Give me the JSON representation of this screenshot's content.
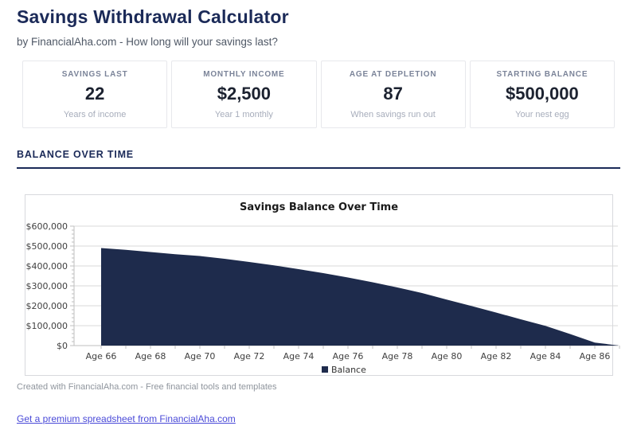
{
  "page": {
    "title": "Savings Withdrawal Calculator",
    "subtitle": "by FinancialAha.com - How long will your savings last?"
  },
  "stats": [
    {
      "label": "SAVINGS LAST",
      "value": "22",
      "sub": "Years of income"
    },
    {
      "label": "MONTHLY INCOME",
      "value": "$2,500",
      "sub": "Year 1 monthly"
    },
    {
      "label": "AGE AT DEPLETION",
      "value": "87",
      "sub": "When savings run out"
    },
    {
      "label": "STARTING BALANCE",
      "value": "$500,000",
      "sub": "Your nest egg"
    }
  ],
  "section": {
    "heading": "BALANCE OVER TIME"
  },
  "chart_data": {
    "type": "area",
    "title": "Savings Balance Over Time",
    "legend": [
      "Balance"
    ],
    "legend_position": "bottom",
    "grid": true,
    "x": [
      66,
      67,
      68,
      69,
      70,
      71,
      72,
      73,
      74,
      75,
      76,
      77,
      78,
      79,
      80,
      81,
      82,
      83,
      84,
      85,
      86,
      87
    ],
    "x_tick_labels": [
      "Age 66",
      "Age 68",
      "Age 70",
      "Age 72",
      "Age 74",
      "Age 76",
      "Age 78",
      "Age 80",
      "Age 82",
      "Age 84",
      "Age 86"
    ],
    "series": [
      {
        "name": "Balance",
        "values": [
          490000,
          481000,
          470000,
          459000,
          450000,
          436000,
          420000,
          403000,
          384000,
          364000,
          342000,
          318000,
          292000,
          264000,
          231000,
          199000,
          166000,
          132000,
          99000,
          58000,
          15000,
          0
        ]
      }
    ],
    "ylim": [
      0,
      600000
    ],
    "y_tick_step": 100000,
    "y_minor_tick_step": 20000,
    "y_tick_labels": [
      "$0",
      "$100,000",
      "$200,000",
      "$300,000",
      "$400,000",
      "$500,000",
      "$600,000"
    ],
    "colors": {
      "area": "#1e2b4c",
      "gridline": "#d9d9d9",
      "axis": "#bfbfbf",
      "tick_text": "#404040"
    }
  },
  "footer": {
    "credit": "Created with FinancialAha.com - Free financial tools and templates",
    "link": "Get a premium spreadsheet from FinancialAha.com"
  }
}
